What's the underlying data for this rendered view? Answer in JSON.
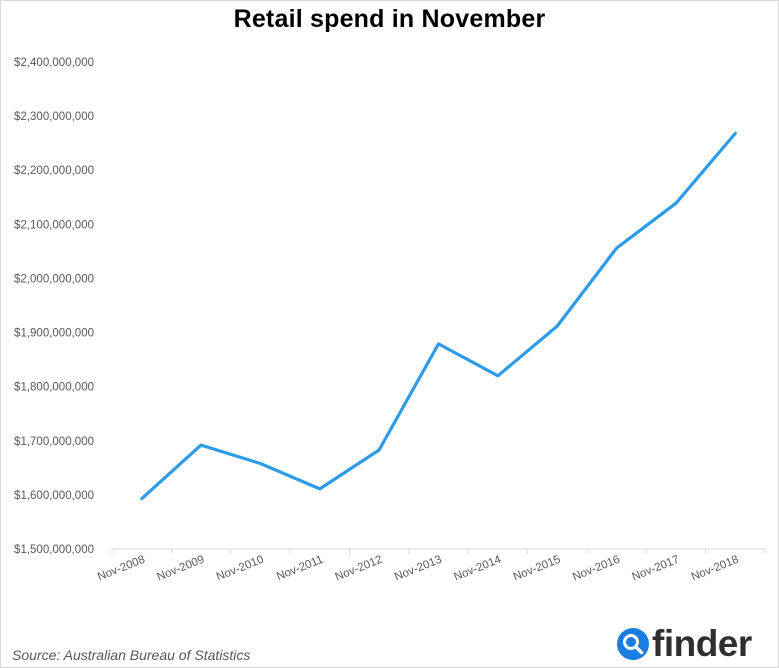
{
  "chart_data": {
    "type": "line",
    "title": "Retail spend in November",
    "xlabel": "",
    "ylabel": "",
    "categories": [
      "Nov-2008",
      "Nov-2009",
      "Nov-2010",
      "Nov-2011",
      "Nov-2012",
      "Nov-2013",
      "Nov-2014",
      "Nov-2015",
      "Nov-2016",
      "Nov-2017",
      "Nov-2018"
    ],
    "series": [
      {
        "values": [
          1593000000,
          1692000000,
          1658000000,
          1611000000,
          1683000000,
          1879000000,
          1820000000,
          1912000000,
          2056000000,
          2139000000,
          2268000000
        ]
      }
    ],
    "ylim": [
      1500000000,
      2400000000
    ],
    "yticks": [
      "$1,500,000,000",
      "$1,600,000,000",
      "$1,700,000,000",
      "$1,800,000,000",
      "$1,900,000,000",
      "$2,000,000,000",
      "$2,100,000,000",
      "$2,200,000,000",
      "$2,300,000,000",
      "$2,400,000,000"
    ],
    "grid": false,
    "legend": "none",
    "line_color": "#2e9be9"
  },
  "footer": {
    "source": "Source: Australian Bureau of Statistics",
    "brand": "finder",
    "brand_icon": "search-magnifier-icon",
    "brand_color": "#1a7ee0"
  }
}
